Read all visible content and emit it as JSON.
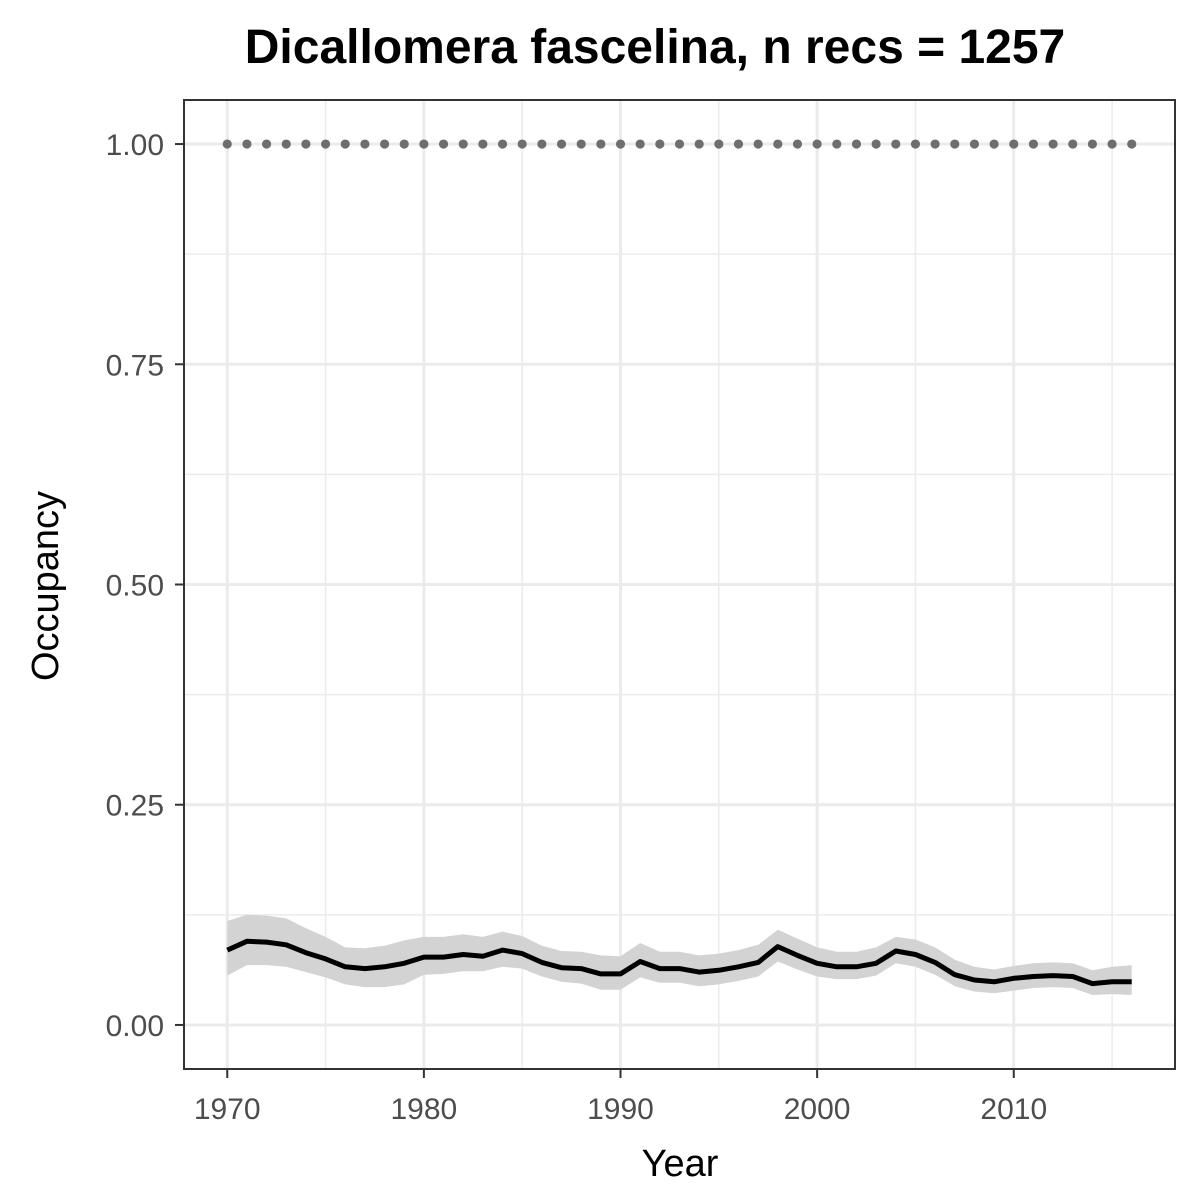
{
  "chart_data": {
    "type": "line",
    "title": "Dicallomera fascelina, n recs = 1257",
    "xlabel": "Year",
    "ylabel": "Occupancy",
    "xlim": [
      1967.8,
      2018.2
    ],
    "ylim": [
      -0.05,
      1.05
    ],
    "x_ticks": [
      1970,
      1980,
      1990,
      2000,
      2010
    ],
    "x_tick_labels": [
      "1970",
      "1980",
      "1990",
      "2000",
      "2010"
    ],
    "x_minor_ticks": [
      1975,
      1985,
      1995,
      2005,
      2015
    ],
    "y_ticks": [
      0,
      0.25,
      0.5,
      0.75,
      1.0
    ],
    "y_tick_labels": [
      "0.00",
      "0.25",
      "0.50",
      "0.75",
      "1.00"
    ],
    "y_minor_ticks": [
      0.125,
      0.375,
      0.625,
      0.875
    ],
    "grid": true,
    "legend": "none",
    "colors": {
      "mean_line": "#000000",
      "ribbon": "#d3d3d3",
      "reference_points": "#6e6e6e",
      "grid": "#ebebeb",
      "panel_border": "#333333"
    },
    "x": [
      1970,
      1971,
      1972,
      1973,
      1974,
      1975,
      1976,
      1977,
      1978,
      1979,
      1980,
      1981,
      1982,
      1983,
      1984,
      1985,
      1986,
      1987,
      1988,
      1989,
      1990,
      1991,
      1992,
      1993,
      1994,
      1995,
      1996,
      1997,
      1998,
      1999,
      2000,
      2001,
      2002,
      2003,
      2004,
      2005,
      2006,
      2007,
      2008,
      2009,
      2010,
      2011,
      2012,
      2013,
      2014,
      2015,
      2016
    ],
    "series": [
      {
        "role": "mean",
        "values": [
          0.085,
          0.095,
          0.094,
          0.091,
          0.082,
          0.075,
          0.066,
          0.064,
          0.066,
          0.07,
          0.077,
          0.077,
          0.08,
          0.078,
          0.085,
          0.081,
          0.071,
          0.065,
          0.064,
          0.058,
          0.058,
          0.072,
          0.064,
          0.064,
          0.06,
          0.062,
          0.066,
          0.071,
          0.089,
          0.079,
          0.07,
          0.066,
          0.066,
          0.07,
          0.084,
          0.08,
          0.071,
          0.057,
          0.051,
          0.049,
          0.053,
          0.055,
          0.056,
          0.055,
          0.047,
          0.049,
          0.049
        ]
      },
      {
        "role": "lower",
        "values": [
          0.056,
          0.068,
          0.068,
          0.066,
          0.06,
          0.054,
          0.046,
          0.043,
          0.043,
          0.046,
          0.057,
          0.058,
          0.061,
          0.061,
          0.066,
          0.064,
          0.055,
          0.049,
          0.047,
          0.04,
          0.04,
          0.054,
          0.048,
          0.048,
          0.044,
          0.046,
          0.05,
          0.055,
          0.072,
          0.063,
          0.055,
          0.052,
          0.052,
          0.056,
          0.07,
          0.066,
          0.057,
          0.044,
          0.038,
          0.036,
          0.039,
          0.042,
          0.043,
          0.042,
          0.034,
          0.035,
          0.034
        ]
      },
      {
        "role": "upper",
        "values": [
          0.118,
          0.125,
          0.124,
          0.121,
          0.11,
          0.1,
          0.088,
          0.087,
          0.09,
          0.096,
          0.1,
          0.1,
          0.103,
          0.1,
          0.106,
          0.101,
          0.09,
          0.084,
          0.083,
          0.079,
          0.078,
          0.093,
          0.083,
          0.083,
          0.079,
          0.081,
          0.085,
          0.091,
          0.108,
          0.098,
          0.088,
          0.083,
          0.083,
          0.088,
          0.1,
          0.097,
          0.088,
          0.074,
          0.066,
          0.063,
          0.067,
          0.07,
          0.071,
          0.07,
          0.062,
          0.066,
          0.068
        ]
      },
      {
        "role": "reference",
        "x_step": 1,
        "values": [
          1,
          1,
          1,
          1,
          1,
          1,
          1,
          1,
          1,
          1,
          1,
          1,
          1,
          1,
          1,
          1,
          1,
          1,
          1,
          1,
          1,
          1,
          1,
          1,
          1,
          1,
          1,
          1,
          1,
          1,
          1,
          1,
          1,
          1,
          1,
          1,
          1,
          1,
          1,
          1,
          1,
          1,
          1,
          1,
          1,
          1,
          1
        ]
      }
    ]
  }
}
